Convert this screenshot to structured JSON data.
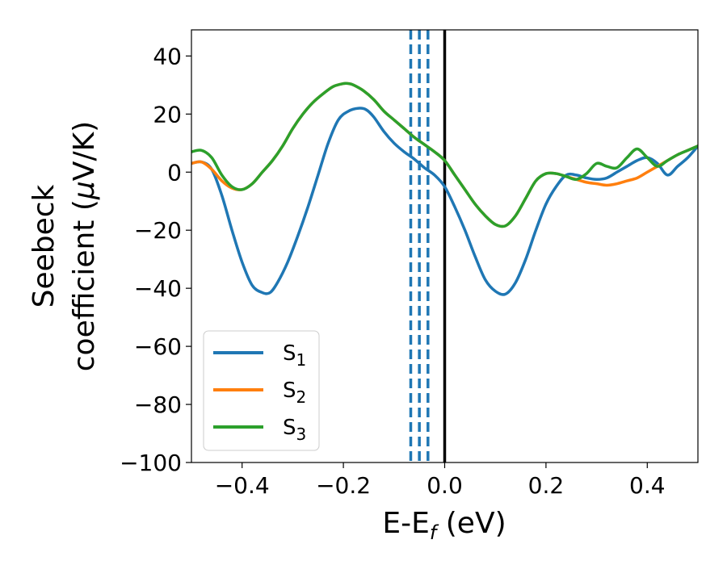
{
  "chart_data": {
    "type": "line",
    "xlabel": "E-E",
    "xlabel_sub": "f",
    "xlabel_unit": " (eV)",
    "ylabel_line1": "Seebeck",
    "ylabel_line2": "coefficient  (",
    "ylabel_mu": "μ",
    "ylabel_unit": "V/K)",
    "xlim": [
      -0.5,
      0.5
    ],
    "ylim": [
      -100,
      49
    ],
    "xticks": [
      -0.4,
      -0.2,
      0.0,
      0.2,
      0.4
    ],
    "xtick_labels": [
      "−0.4",
      "−0.2",
      "0.0",
      "0.2",
      "0.4"
    ],
    "yticks": [
      40,
      20,
      0,
      -20,
      -40,
      -60,
      -80,
      -100
    ],
    "ytick_labels": [
      "40",
      "20",
      "0",
      "−20",
      "−40",
      "−60",
      "−80",
      "−100"
    ],
    "grid": false,
    "legend_position": "lower-left",
    "vertical_lines": [
      {
        "x": -0.067,
        "style": "dashed",
        "color": "#1f77b4"
      },
      {
        "x": -0.05,
        "style": "dashed",
        "color": "#1f77b4"
      },
      {
        "x": -0.033,
        "style": "dashed",
        "color": "#1f77b4"
      },
      {
        "x": 0.0,
        "style": "solid",
        "color": "#000000"
      }
    ],
    "series": [
      {
        "name": "S",
        "name_sub": "1",
        "color": "#1f77b4",
        "x": [
          -0.5,
          -0.48,
          -0.46,
          -0.44,
          -0.42,
          -0.4,
          -0.38,
          -0.36,
          -0.345,
          -0.33,
          -0.31,
          -0.29,
          -0.27,
          -0.25,
          -0.23,
          -0.21,
          -0.19,
          -0.17,
          -0.155,
          -0.14,
          -0.12,
          -0.1,
          -0.08,
          -0.06,
          -0.04,
          -0.02,
          0.0,
          0.02,
          0.04,
          0.06,
          0.08,
          0.1,
          0.12,
          0.14,
          0.16,
          0.18,
          0.2,
          0.22,
          0.24,
          0.26,
          0.28,
          0.3,
          0.32,
          0.34,
          0.36,
          0.38,
          0.4,
          0.42,
          0.44,
          0.46,
          0.48,
          0.5
        ],
        "y": [
          3,
          3.5,
          1,
          -8,
          -20,
          -31,
          -39,
          -41.5,
          -41.5,
          -38,
          -31,
          -22,
          -12,
          -1,
          10,
          18,
          21,
          22,
          21.5,
          19,
          14,
          10,
          7,
          4.5,
          1.5,
          -1,
          -5,
          -12,
          -20,
          -29,
          -37,
          -41,
          -42,
          -38,
          -30,
          -20,
          -11,
          -5,
          -1,
          -1,
          -2,
          -2.5,
          -2,
          0,
          2,
          4,
          5,
          3,
          -1,
          2,
          5,
          9
        ]
      },
      {
        "name": "S",
        "name_sub": "2",
        "color": "#ff7f0e",
        "x": [
          -0.5,
          -0.48,
          -0.46,
          -0.44,
          -0.42,
          -0.4,
          -0.38,
          -0.36,
          -0.34,
          -0.32,
          -0.3,
          -0.28,
          -0.26,
          -0.24,
          -0.22,
          -0.2,
          -0.19,
          -0.18,
          -0.16,
          -0.14,
          -0.12,
          -0.1,
          -0.08,
          -0.06,
          -0.04,
          -0.02,
          0.0,
          0.02,
          0.04,
          0.06,
          0.08,
          0.1,
          0.12,
          0.14,
          0.16,
          0.18,
          0.2,
          0.22,
          0.24,
          0.26,
          0.28,
          0.3,
          0.32,
          0.34,
          0.36,
          0.38,
          0.4,
          0.42,
          0.44,
          0.46,
          0.48,
          0.5
        ],
        "y": [
          3,
          3.5,
          1,
          -3,
          -5.5,
          -6,
          -4,
          0,
          4,
          9,
          15,
          20,
          24,
          27,
          29.5,
          30.5,
          30.5,
          30,
          28,
          25,
          21,
          18,
          15,
          12,
          9.5,
          7,
          4,
          -1,
          -6,
          -11,
          -15,
          -18,
          -18.5,
          -15,
          -9,
          -3,
          -0.5,
          -0.5,
          -1.5,
          -2.5,
          -3.5,
          -4,
          -4.5,
          -4,
          -3,
          -2,
          0,
          2,
          4,
          6,
          7.5,
          9
        ]
      },
      {
        "name": "S",
        "name_sub": "3",
        "color": "#2ca02c",
        "x": [
          -0.5,
          -0.48,
          -0.46,
          -0.44,
          -0.42,
          -0.4,
          -0.38,
          -0.36,
          -0.34,
          -0.32,
          -0.3,
          -0.28,
          -0.26,
          -0.24,
          -0.22,
          -0.2,
          -0.19,
          -0.18,
          -0.16,
          -0.14,
          -0.12,
          -0.1,
          -0.08,
          -0.06,
          -0.04,
          -0.02,
          0.0,
          0.02,
          0.04,
          0.06,
          0.08,
          0.1,
          0.12,
          0.14,
          0.16,
          0.18,
          0.2,
          0.22,
          0.24,
          0.26,
          0.28,
          0.3,
          0.32,
          0.34,
          0.36,
          0.38,
          0.4,
          0.42,
          0.44,
          0.46,
          0.48,
          0.5
        ],
        "y": [
          7,
          7.5,
          5,
          -1,
          -5,
          -6,
          -4,
          0,
          4,
          9,
          15,
          20,
          24,
          27,
          29.5,
          30.5,
          30.5,
          30,
          28,
          25,
          21,
          18,
          15,
          12,
          9.5,
          7,
          4,
          -1,
          -6,
          -11,
          -15,
          -18,
          -18.5,
          -15,
          -9,
          -3,
          -0.5,
          -0.5,
          -1.5,
          -2.5,
          -0.5,
          3,
          2,
          1.5,
          5,
          8,
          5,
          2,
          4,
          6,
          7.5,
          9
        ]
      }
    ]
  }
}
